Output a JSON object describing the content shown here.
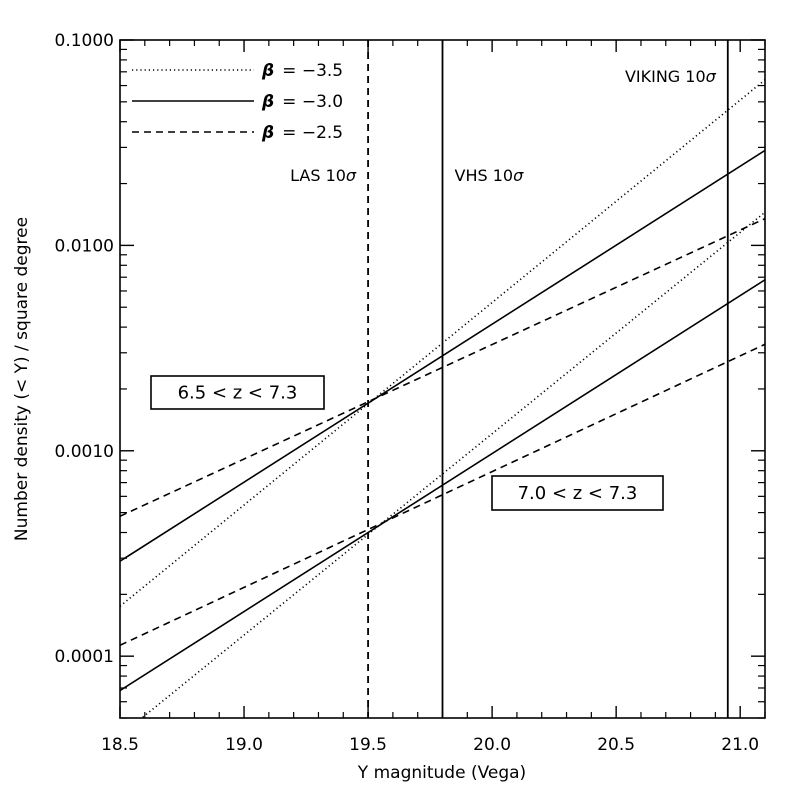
{
  "chart_data": {
    "type": "line",
    "xlabel": "Y magnitude (Vega)",
    "ylabel": "Number density (< Y) / square degree",
    "xlim": [
      18.5,
      21.1
    ],
    "ylim": [
      5e-05,
      0.1
    ],
    "yscale": "log",
    "x_ticks": [
      "18.5",
      "19.0",
      "19.5",
      "20.0",
      "20.5",
      "21.0"
    ],
    "y_ticks": [
      "0.0001",
      "0.0010",
      "0.0100",
      "0.1000"
    ],
    "legend": {
      "placement": "top-left",
      "entries": [
        {
          "beta": "-3.5",
          "style": "dotted",
          "text": "= −3.5"
        },
        {
          "beta": "-3.0",
          "style": "solid",
          "text": "= −3.0"
        },
        {
          "beta": "-2.5",
          "style": "dashed",
          "text": "= −2.5"
        }
      ]
    },
    "depth_limits": [
      {
        "label": "LAS 10",
        "x": 19.5,
        "style": "dashed",
        "label_side": "left"
      },
      {
        "label": "VHS 10",
        "x": 19.8,
        "style": "solid",
        "label_side": "right"
      },
      {
        "label": "VIKING 10",
        "x": 20.95,
        "style": "solid",
        "label_side": "left"
      }
    ],
    "redshift_bins": [
      {
        "label": "6.5 < z < 7.3",
        "series": [
          {
            "beta": "-3.5",
            "style": "dotted",
            "x": [
              18.5,
              21.1
            ],
            "y": [
              0.000175,
              0.064
            ]
          },
          {
            "beta": "-3.0",
            "style": "solid",
            "x": [
              18.5,
              21.1
            ],
            "y": [
              0.00029,
              0.029
            ]
          },
          {
            "beta": "-2.5",
            "style": "dashed",
            "x": [
              18.5,
              21.1
            ],
            "y": [
              0.00048,
              0.0135
            ]
          }
        ]
      },
      {
        "label": "7.0 < z < 7.3",
        "series": [
          {
            "beta": "-3.5",
            "style": "dotted",
            "x": [
              18.5,
              21.1
            ],
            "y": [
              4.1e-05,
              0.0145
            ]
          },
          {
            "beta": "-3.0",
            "style": "solid",
            "x": [
              18.5,
              21.1
            ],
            "y": [
              6.8e-05,
              0.0068
            ]
          },
          {
            "beta": "-2.5",
            "style": "dashed",
            "x": [
              18.5,
              21.1
            ],
            "y": [
              0.000113,
              0.0033
            ]
          }
        ]
      }
    ]
  }
}
